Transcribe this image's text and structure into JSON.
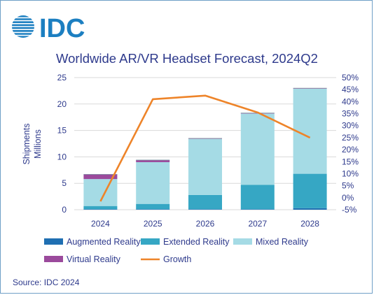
{
  "brand": {
    "logo_text": "IDC",
    "color": "#1c7fc1"
  },
  "colors": {
    "text": "#2e3a8c",
    "augmented": "#1f6fb2",
    "extended": "#36a7c4",
    "mixed": "#a5dbe5",
    "virtual": "#9b4a9c",
    "growth": "#ee8429",
    "grid": "#d9d9d9"
  },
  "icons": {
    "logo": "idc-globe-icon"
  },
  "chart_data": {
    "type": "bar",
    "stacked": true,
    "title": "Worldwide AR/VR Headset Forecast, 2024Q2",
    "ylabel_lines": [
      "Shipments",
      "Millions"
    ],
    "categories": [
      "2024",
      "2025",
      "2026",
      "2027",
      "2028"
    ],
    "ylim": [
      0,
      25
    ],
    "yticks": [
      0,
      5,
      10,
      15,
      20,
      25
    ],
    "y2lim": [
      -5,
      50
    ],
    "y2ticks": [
      -5,
      0,
      5,
      10,
      15,
      20,
      25,
      30,
      35,
      40,
      45,
      50
    ],
    "y2tick_labels": [
      "-5%",
      "0%",
      "5%",
      "10%",
      "15%",
      "20%",
      "25%",
      "30%",
      "35%",
      "40%",
      "45%",
      "50%"
    ],
    "grid": true,
    "legend_position": "bottom",
    "series": [
      {
        "name": "Augmented Reality",
        "type": "bar",
        "color_key": "augmented",
        "values": [
          0.1,
          0.1,
          0.1,
          0.1,
          0.3
        ]
      },
      {
        "name": "Extended Reality",
        "type": "bar",
        "color_key": "extended",
        "values": [
          0.6,
          1.0,
          2.7,
          4.6,
          6.5
        ]
      },
      {
        "name": "Mixed Reality",
        "type": "bar",
        "color_key": "mixed",
        "values": [
          5.1,
          7.9,
          10.6,
          13.5,
          16.1
        ]
      },
      {
        "name": "Virtual Reality",
        "type": "bar",
        "color_key": "virtual",
        "values": [
          0.9,
          0.4,
          0.1,
          0.1,
          0.1
        ]
      },
      {
        "name": "Growth",
        "type": "line",
        "axis": "right",
        "color_key": "growth",
        "values": [
          -1.5,
          41,
          42.5,
          35.5,
          25
        ]
      }
    ],
    "legend": [
      {
        "label": "Augmented Reality",
        "color_key": "augmented",
        "kind": "box"
      },
      {
        "label": "Extended Reality",
        "color_key": "extended",
        "kind": "box"
      },
      {
        "label": "Mixed Reality",
        "color_key": "mixed",
        "kind": "box"
      },
      {
        "label": "Virtual Reality",
        "color_key": "virtual",
        "kind": "box"
      },
      {
        "label": "Growth",
        "color_key": "growth",
        "kind": "line"
      }
    ]
  },
  "source": "Source: IDC 2024"
}
